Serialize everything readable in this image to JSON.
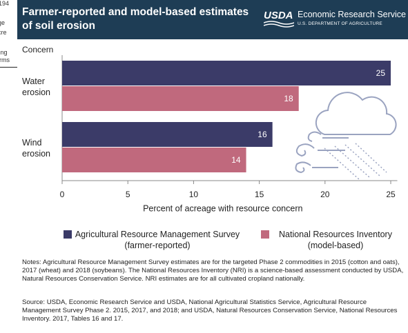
{
  "background_text": [
    "194",
    "age",
    "acre",
    "sing",
    "arms"
  ],
  "header": {
    "title": "Farmer-reported and model-based estimates of soil erosion",
    "logo": "USDA",
    "agency": "Economic Research Service",
    "department": "U.S. DEPARTMENT OF AGRICULTURE"
  },
  "chart_data": {
    "type": "bar",
    "orientation": "horizontal",
    "y_label": "Concern",
    "x_label": "Percent of acreage with resource concern",
    "categories": [
      "Water erosion",
      "Wind erosion"
    ],
    "series": [
      {
        "name": "Agricultural Resource Management Survey (farmer-reported)",
        "color": "#3b3b68",
        "values": [
          25,
          16
        ]
      },
      {
        "name": "National Resources Inventory (model-based)",
        "color": "#c0697d",
        "values": [
          18,
          14
        ]
      }
    ],
    "xlim": [
      0,
      25.5
    ],
    "xticks": [
      0,
      5,
      10,
      15,
      20,
      25
    ],
    "grid": false,
    "notes": "Notes: Agricultural Resource Management Survey estimates are for the targeted Phase 2 commodities in 2015 (cotton and oats), 2017 (wheat) and 2018 (soybeans). The National Resources Inventory (NRI) is a science-based assessment conducted by USDA, Natural Resources Conservation Service. NRI estimates are for all cultivated cropland nationally.",
    "source": "Source: USDA, Economic Research Service and USDA, National Agricultural Statistics Service, Agricultural Resource Management Survey Phase 2. 2015, 2017, and 2018; and USDA, Natural Resources Conservation Service, National Resources Inventory. 2017, Tables 16 and 17."
  }
}
